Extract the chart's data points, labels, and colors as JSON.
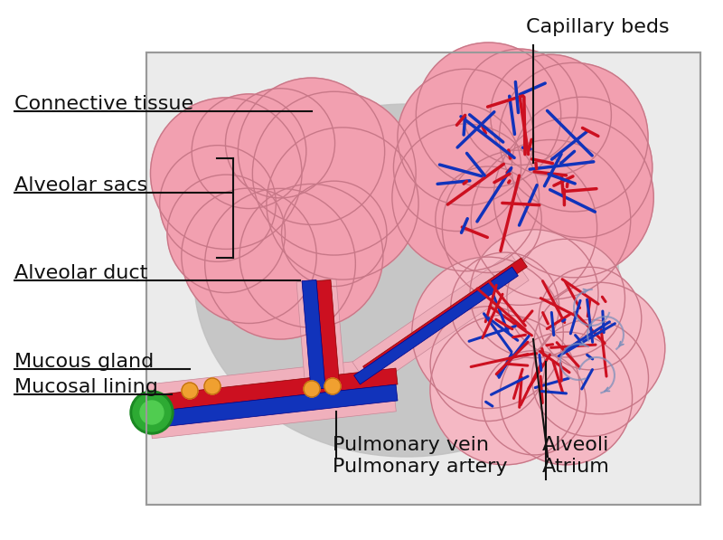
{
  "bg_color": "#ffffff",
  "box_fc": "#ebebeb",
  "box_ec": "#999999",
  "shadow_color": "#c0c0c0",
  "pink_light": "#f5b8c4",
  "pink_mid": "#f2a0b0",
  "pink_edge": "#c87888",
  "pink_darker": "#e8889a",
  "red": "#cc1020",
  "red_dark": "#8b0000",
  "blue": "#1133bb",
  "blue_dark": "#000088",
  "airway_pink": "#f0b0bc",
  "airway_edge": "#c88898",
  "green_dark": "#1a8822",
  "green_mid": "#2daa33",
  "green_light": "#50cc50",
  "orange": "#f0a030",
  "orange_edge": "#c07010",
  "flow_arrow": "#8090bb",
  "label_color": "#111111",
  "line_color": "#111111",
  "label_fontsize": 16,
  "labels": {
    "capillary_beds": "Capillary beds",
    "connective_tissue": "Connective tissue",
    "alveolar_sacs": "Alveolar sacs",
    "alveolar_duct": "Alveolar duct",
    "mucous_gland": "Mucous gland",
    "mucosal_lining": "Mucosal lining",
    "pulmonary_vein": "Pulmonary vein",
    "pulmonary_artery": "Pulmonary artery",
    "alveoli": "Alveoli",
    "atrium": "Atrium"
  }
}
